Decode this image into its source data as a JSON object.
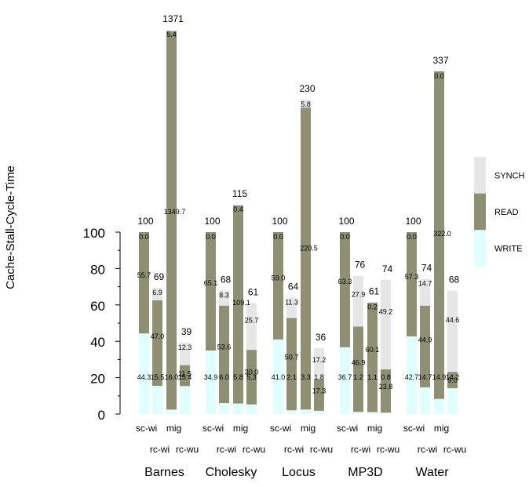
{
  "chart_data": {
    "type": "bar",
    "stacked": true,
    "ylabel": "Cache-Stall-Cycle-Time",
    "ylim": [
      0,
      100
    ],
    "yticks": [
      "0",
      "20",
      "40",
      "60",
      "80",
      "100"
    ],
    "legend_position": "right",
    "series": [
      {
        "name": "WRITE",
        "color": "#e0ffff"
      },
      {
        "name": "READ",
        "color": "#8f8f74"
      },
      {
        "name": "SYNCH",
        "color": "#e6e6e6"
      }
    ],
    "groups": [
      {
        "name": "Barnes",
        "bars": [
          {
            "label": "sc-wi",
            "row": 0,
            "total": "100",
            "values": [
              44.3,
              55.7,
              0.0
            ]
          },
          {
            "label": "rc-wi",
            "row": 1,
            "total": "69",
            "values": [
              15.5,
              47.0,
              6.9
            ]
          },
          {
            "label": "mig",
            "row": 0,
            "total": "1371",
            "broken": true,
            "values": [
              16.0,
              1349.7,
              5.4
            ]
          },
          {
            "label": "rc-wu",
            "row": 1,
            "total": "39",
            "values": [
              15.4,
              11.5,
              12.3
            ]
          }
        ]
      },
      {
        "name": "Cholesky",
        "bars": [
          {
            "label": "sc-wi",
            "row": 0,
            "total": "100",
            "values": [
              34.9,
              65.1,
              0.0
            ]
          },
          {
            "label": "rc-wi",
            "row": 1,
            "total": "68",
            "values": [
              6.0,
              53.6,
              8.3
            ]
          },
          {
            "label": "mig",
            "row": 0,
            "total": "115",
            "broken": true,
            "values": [
              5.8,
              109.1,
              0.4
            ]
          },
          {
            "label": "rc-wu",
            "row": 1,
            "total": "61",
            "values": [
              5.3,
              30.0,
              25.7
            ]
          }
        ]
      },
      {
        "name": "Locus",
        "bars": [
          {
            "label": "sc-wi",
            "row": 0,
            "total": "100",
            "values": [
              41.0,
              59.0,
              0.0
            ]
          },
          {
            "label": "rc-wi",
            "row": 1,
            "total": "64",
            "values": [
              2.1,
              50.7,
              11.3
            ]
          },
          {
            "label": "mig",
            "row": 0,
            "total": "230",
            "broken": true,
            "values": [
              3.3,
              220.5,
              5.8
            ]
          },
          {
            "label": "rc-wu",
            "row": 1,
            "total": "36",
            "values": [
              1.8,
              17.3,
              17.2
            ]
          }
        ]
      },
      {
        "name": "MP3D",
        "bars": [
          {
            "label": "sc-wi",
            "row": 0,
            "total": "100",
            "values": [
              36.7,
              63.3,
              0.0
            ]
          },
          {
            "label": "rc-wi",
            "row": 1,
            "total": "76",
            "values": [
              1.2,
              46.9,
              27.9
            ]
          },
          {
            "label": "mig",
            "row": 0,
            "total": "61",
            "values": [
              1.1,
              60.1,
              0.2
            ]
          },
          {
            "label": "rc-wu",
            "row": 1,
            "total": "74",
            "values": [
              0.8,
              23.8,
              49.2
            ]
          }
        ]
      },
      {
        "name": "Water",
        "bars": [
          {
            "label": "sc-wi",
            "row": 0,
            "total": "100",
            "values": [
              42.7,
              57.3,
              0.0
            ]
          },
          {
            "label": "rc-wi",
            "row": 1,
            "total": "74",
            "values": [
              14.7,
              44.9,
              14.7
            ]
          },
          {
            "label": "mig",
            "row": 0,
            "total": "337",
            "broken": true,
            "values": [
              14.9,
              322.0,
              0.0
            ]
          },
          {
            "label": "rc-wu",
            "row": 1,
            "total": "68",
            "values": [
              14.2,
              9.0,
              44.6
            ]
          }
        ]
      }
    ]
  }
}
